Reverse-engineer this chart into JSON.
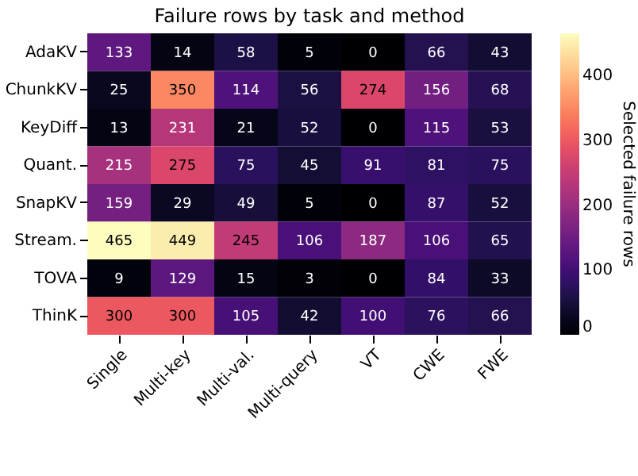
{
  "chart_data": {
    "type": "heatmap",
    "title": "Failure rows by task and method",
    "categories": [
      "Single",
      "Multi-key",
      "Multi-val.",
      "Multi-query",
      "VT",
      "CWE",
      "FWE"
    ],
    "y_categories": [
      "AdaKV",
      "ChunkKV",
      "KeyDiff",
      "Quant.",
      "SnapKV",
      "Stream.",
      "TOVA",
      "ThinK"
    ],
    "cells": [
      [
        133,
        14,
        58,
        5,
        0,
        66,
        43
      ],
      [
        25,
        350,
        114,
        56,
        274,
        156,
        68
      ],
      [
        13,
        231,
        21,
        52,
        0,
        115,
        53
      ],
      [
        215,
        275,
        75,
        45,
        91,
        81,
        75
      ],
      [
        159,
        29,
        49,
        5,
        0,
        87,
        52
      ],
      [
        465,
        449,
        245,
        106,
        187,
        106,
        65
      ],
      [
        9,
        129,
        15,
        3,
        0,
        84,
        33
      ],
      [
        300,
        300,
        105,
        42,
        100,
        76,
        66
      ]
    ],
    "clabel": "Selected failure rows",
    "clim": [
      0,
      465
    ],
    "cticks": [
      0,
      100,
      200,
      300,
      400
    ],
    "data_labels": true
  }
}
